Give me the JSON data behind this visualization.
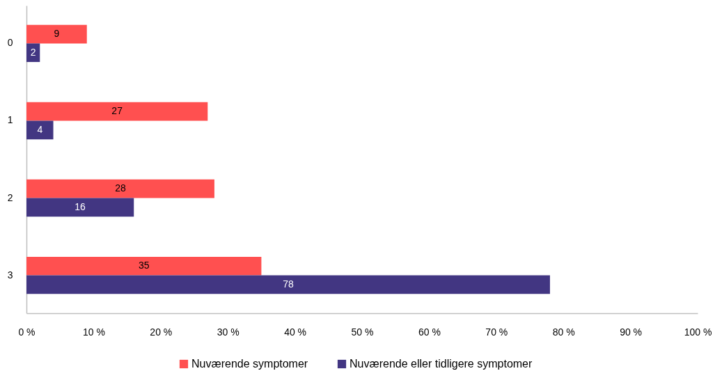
{
  "chart_data": {
    "type": "bar",
    "orientation": "horizontal",
    "categories": [
      "0",
      "1",
      "2",
      "3"
    ],
    "series": [
      {
        "name": "Nuværende symptomer",
        "color": "#ff5050",
        "values": [
          9,
          27,
          28,
          35
        ]
      },
      {
        "name": "Nuværende eller tidligere symptomer",
        "color": "#423682",
        "values": [
          2,
          4,
          16,
          78
        ]
      }
    ],
    "xlim": [
      0,
      100
    ],
    "xticks": [
      {
        "value": 0,
        "label": "0 %"
      },
      {
        "value": 10,
        "label": "10 %"
      },
      {
        "value": 20,
        "label": "20 %"
      },
      {
        "value": 30,
        "label": "30 %"
      },
      {
        "value": 40,
        "label": "40 %"
      },
      {
        "value": 50,
        "label": "50 %"
      },
      {
        "value": 60,
        "label": "60 %"
      },
      {
        "value": 70,
        "label": "70 %"
      },
      {
        "value": 80,
        "label": "80 %"
      },
      {
        "value": 90,
        "label": "90 %"
      },
      {
        "value": 100,
        "label": "100 %"
      }
    ],
    "data_labels": true,
    "legend": "bottom"
  }
}
